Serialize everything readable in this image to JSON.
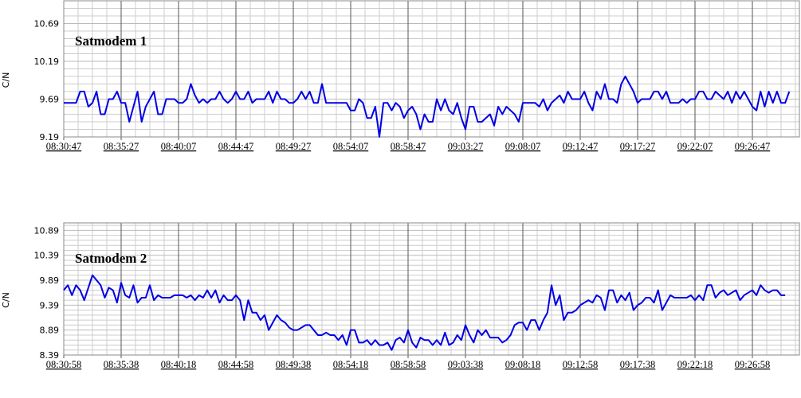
{
  "chart_data": [
    {
      "type": "line",
      "title": "Satmodem 1",
      "y_label": "C/N",
      "color": "#0000e6",
      "grid": true,
      "ylim": [
        9.19,
        10.99
      ],
      "yticks": [
        9.19,
        9.69,
        10.19,
        10.69
      ],
      "categories": [
        "08:30:47",
        null,
        null,
        null,
        null,
        null,
        null,
        null,
        null,
        null,
        null,
        null,
        null,
        null,
        "08:35:27",
        null,
        null,
        null,
        null,
        null,
        null,
        null,
        null,
        null,
        null,
        null,
        null,
        null,
        "08:40:07",
        null,
        null,
        null,
        null,
        null,
        null,
        null,
        null,
        null,
        null,
        null,
        null,
        null,
        "08:44:47",
        null,
        null,
        null,
        null,
        null,
        null,
        null,
        null,
        null,
        null,
        null,
        null,
        null,
        "08:49:27",
        null,
        null,
        null,
        null,
        null,
        null,
        null,
        null,
        null,
        null,
        null,
        null,
        null,
        "08:54:07",
        null,
        null,
        null,
        null,
        null,
        null,
        null,
        null,
        null,
        null,
        null,
        null,
        null,
        "08:58:47",
        null,
        null,
        null,
        null,
        null,
        null,
        null,
        null,
        null,
        null,
        null,
        null,
        null,
        "09:03:27",
        null,
        null,
        null,
        null,
        null,
        null,
        null,
        null,
        null,
        null,
        null,
        null,
        null,
        "09:08:07",
        null,
        null,
        null,
        null,
        null,
        null,
        null,
        null,
        null,
        null,
        null,
        null,
        null,
        "09:12:47",
        null,
        null,
        null,
        null,
        null,
        null,
        null,
        null,
        null,
        null,
        null,
        null,
        null,
        "09:17:27",
        null,
        null,
        null,
        null,
        null,
        null,
        null,
        null,
        null,
        null,
        null,
        null,
        null,
        "09:22:07",
        null,
        null,
        null,
        null,
        null,
        null,
        null,
        null,
        null,
        null,
        null,
        null,
        null,
        "09:26:47",
        null,
        null,
        null,
        null,
        null,
        null,
        null,
        null,
        null
      ],
      "values": [
        9.64,
        9.64,
        9.64,
        9.64,
        9.79,
        9.79,
        9.59,
        9.64,
        9.79,
        9.49,
        9.49,
        9.69,
        9.69,
        9.79,
        9.64,
        9.64,
        9.39,
        9.59,
        9.79,
        9.39,
        9.59,
        9.69,
        9.79,
        9.49,
        9.49,
        9.69,
        9.69,
        9.69,
        9.64,
        9.64,
        9.69,
        9.89,
        9.74,
        9.64,
        9.69,
        9.64,
        9.69,
        9.69,
        9.79,
        9.69,
        9.64,
        9.69,
        9.79,
        9.69,
        9.69,
        9.79,
        9.64,
        9.69,
        9.69,
        9.69,
        9.79,
        9.64,
        9.79,
        9.69,
        9.69,
        9.64,
        9.64,
        9.69,
        9.79,
        9.69,
        9.79,
        9.64,
        9.64,
        9.89,
        9.64,
        9.64,
        9.64,
        9.64,
        9.64,
        9.64,
        9.54,
        9.54,
        9.69,
        9.64,
        9.44,
        9.44,
        9.59,
        9.19,
        9.64,
        9.64,
        9.54,
        9.64,
        9.59,
        9.44,
        9.54,
        9.59,
        9.49,
        9.29,
        9.49,
        9.39,
        9.39,
        9.69,
        9.54,
        9.69,
        9.54,
        9.49,
        9.64,
        9.44,
        9.29,
        9.59,
        9.59,
        9.39,
        9.39,
        9.44,
        9.49,
        9.34,
        9.59,
        9.49,
        9.59,
        9.54,
        9.49,
        9.39,
        9.64,
        9.64,
        9.64,
        9.64,
        9.59,
        9.69,
        9.54,
        9.64,
        9.69,
        9.74,
        9.64,
        9.79,
        9.69,
        9.69,
        9.69,
        9.79,
        9.64,
        9.54,
        9.79,
        9.69,
        9.89,
        9.69,
        9.69,
        9.64,
        9.89,
        9.99,
        9.89,
        9.79,
        9.64,
        9.69,
        9.69,
        9.69,
        9.79,
        9.79,
        9.69,
        9.79,
        9.64,
        9.64,
        9.64,
        9.69,
        9.64,
        9.69,
        9.69,
        9.79,
        9.79,
        9.69,
        9.69,
        9.79,
        9.74,
        9.69,
        9.79,
        9.64,
        9.79,
        9.69,
        9.79,
        9.69,
        9.59,
        9.54,
        9.79,
        9.59,
        9.79,
        9.64,
        9.79,
        9.64,
        9.64,
        9.79
      ]
    },
    {
      "type": "line",
      "title": "Satmodem 2",
      "y_label": "C/N",
      "color": "#0000e6",
      "grid": true,
      "ylim": [
        8.39,
        11.04
      ],
      "yticks": [
        8.39,
        8.89,
        9.39,
        9.89,
        10.39,
        10.89
      ],
      "categories": [
        "08:30:58",
        null,
        null,
        null,
        null,
        null,
        null,
        null,
        null,
        null,
        null,
        null,
        null,
        null,
        "08:35:38",
        null,
        null,
        null,
        null,
        null,
        null,
        null,
        null,
        null,
        null,
        null,
        null,
        null,
        "08:40:18",
        null,
        null,
        null,
        null,
        null,
        null,
        null,
        null,
        null,
        null,
        null,
        null,
        null,
        "08:44:58",
        null,
        null,
        null,
        null,
        null,
        null,
        null,
        null,
        null,
        null,
        null,
        null,
        null,
        "08:49:38",
        null,
        null,
        null,
        null,
        null,
        null,
        null,
        null,
        null,
        null,
        null,
        null,
        null,
        "08:54:18",
        null,
        null,
        null,
        null,
        null,
        null,
        null,
        null,
        null,
        null,
        null,
        null,
        null,
        "08:58:58",
        null,
        null,
        null,
        null,
        null,
        null,
        null,
        null,
        null,
        null,
        null,
        null,
        null,
        "09:03:38",
        null,
        null,
        null,
        null,
        null,
        null,
        null,
        null,
        null,
        null,
        null,
        null,
        null,
        "09:08:18",
        null,
        null,
        null,
        null,
        null,
        null,
        null,
        null,
        null,
        null,
        null,
        null,
        null,
        "09:12:58",
        null,
        null,
        null,
        null,
        null,
        null,
        null,
        null,
        null,
        null,
        null,
        null,
        null,
        "09:17:38",
        null,
        null,
        null,
        null,
        null,
        null,
        null,
        null,
        null,
        null,
        null,
        null,
        null,
        "09:22:18",
        null,
        null,
        null,
        null,
        null,
        null,
        null,
        null,
        null,
        null,
        null,
        null,
        null,
        "09:26:58",
        null,
        null,
        null,
        null,
        null,
        null,
        null,
        null
      ],
      "values": [
        9.69,
        9.79,
        9.59,
        9.79,
        9.69,
        9.49,
        9.74,
        9.99,
        9.89,
        9.79,
        9.54,
        9.74,
        9.69,
        9.44,
        9.84,
        9.59,
        9.54,
        9.79,
        9.44,
        9.54,
        9.54,
        9.79,
        9.49,
        9.59,
        9.54,
        9.54,
        9.54,
        9.59,
        9.59,
        9.59,
        9.54,
        9.59,
        9.49,
        9.59,
        9.54,
        9.69,
        9.54,
        9.69,
        9.44,
        9.59,
        9.49,
        9.49,
        9.59,
        9.49,
        9.09,
        9.49,
        9.24,
        9.24,
        9.09,
        9.19,
        8.89,
        9.04,
        9.19,
        9.09,
        9.04,
        8.94,
        8.89,
        8.89,
        8.94,
        8.99,
        8.99,
        8.89,
        8.79,
        8.79,
        8.84,
        8.79,
        8.79,
        8.69,
        8.79,
        8.59,
        8.89,
        8.89,
        8.64,
        8.64,
        8.69,
        8.59,
        8.69,
        8.59,
        8.59,
        8.64,
        8.49,
        8.69,
        8.74,
        8.64,
        8.89,
        8.64,
        8.54,
        8.74,
        8.69,
        8.69,
        8.59,
        8.69,
        8.59,
        8.84,
        8.59,
        8.64,
        8.79,
        8.69,
        8.99,
        8.79,
        8.64,
        8.89,
        8.79,
        8.89,
        8.74,
        8.74,
        8.74,
        8.64,
        8.69,
        8.79,
        8.99,
        9.04,
        9.04,
        8.89,
        9.09,
        9.09,
        8.89,
        9.09,
        9.24,
        9.79,
        9.39,
        9.59,
        9.09,
        9.24,
        9.24,
        9.29,
        9.39,
        9.44,
        9.49,
        9.44,
        9.59,
        9.54,
        9.29,
        9.69,
        9.69,
        9.44,
        9.59,
        9.49,
        9.64,
        9.29,
        9.39,
        9.44,
        9.54,
        9.54,
        9.44,
        9.69,
        9.29,
        9.44,
        9.59,
        9.54,
        9.54,
        9.54,
        9.54,
        9.59,
        9.49,
        9.59,
        9.49,
        9.79,
        9.79,
        9.54,
        9.64,
        9.69,
        9.59,
        9.64,
        9.69,
        9.49,
        9.59,
        9.64,
        9.69,
        9.59,
        9.79,
        9.69,
        9.64,
        9.69,
        9.69,
        9.59,
        9.59
      ]
    }
  ]
}
